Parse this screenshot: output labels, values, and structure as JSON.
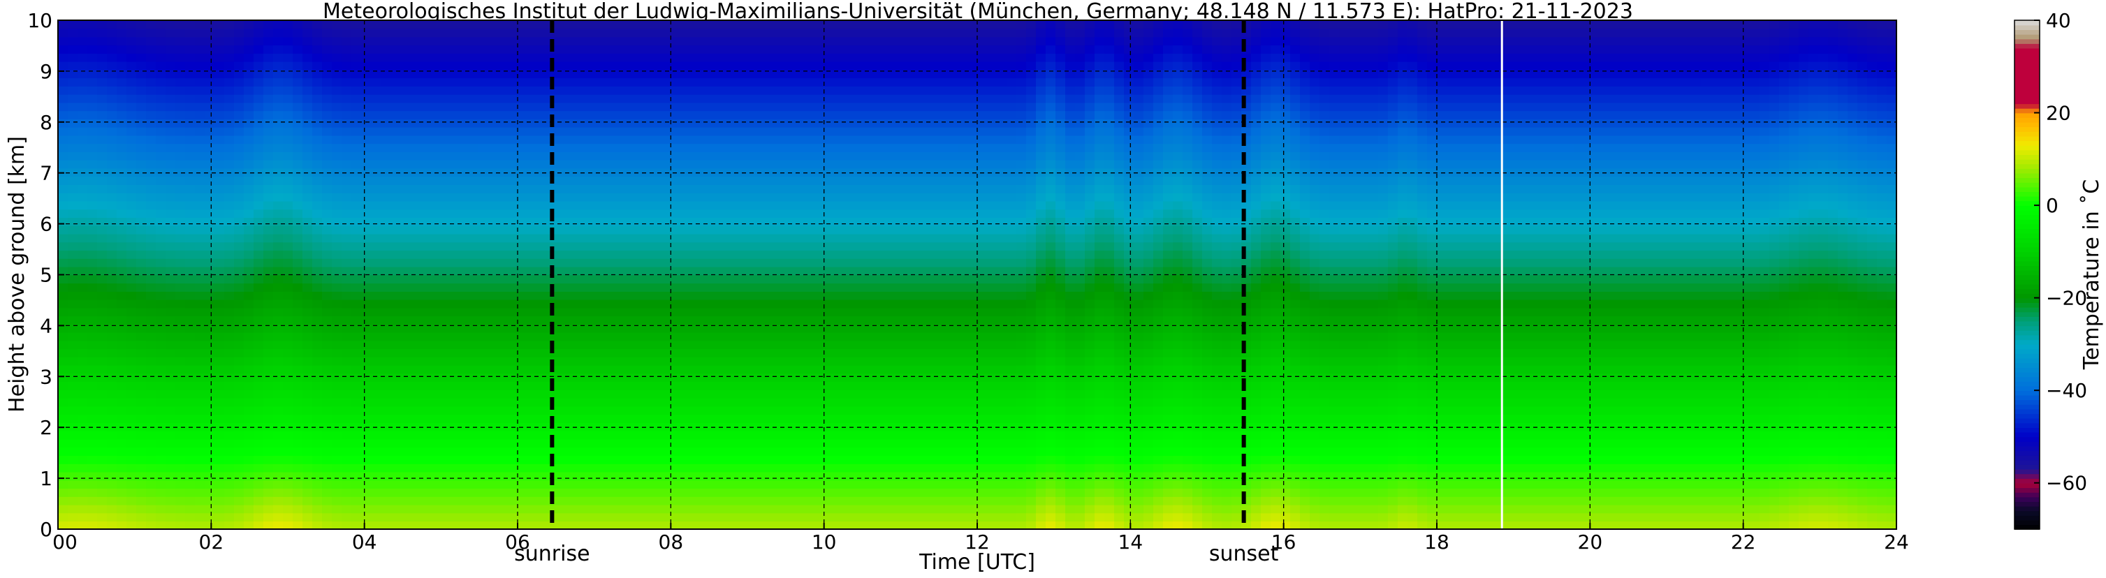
{
  "chart_data": {
    "type": "heatmap",
    "title": "Meteorologisches Institut der Ludwig-Maximilians-Universität (München, Germany; 48.148 N / 11.573 E):    HatPro: 21-11-2023",
    "xlabel": "Time [UTC]",
    "ylabel": "Height above ground [km]",
    "xlim": [
      0,
      24
    ],
    "ylim": [
      0,
      10
    ],
    "x_ticks": [
      "00",
      "02",
      "04",
      "06",
      "08",
      "10",
      "12",
      "14",
      "16",
      "18",
      "20",
      "22",
      "24"
    ],
    "x_tick_values": [
      0,
      2,
      4,
      6,
      8,
      10,
      12,
      14,
      16,
      18,
      20,
      22,
      24
    ],
    "y_ticks": [
      "0",
      "1",
      "2",
      "3",
      "4",
      "5",
      "6",
      "7",
      "8",
      "9",
      "10"
    ],
    "y_tick_values": [
      0,
      1,
      2,
      3,
      4,
      5,
      6,
      7,
      8,
      9,
      10
    ],
    "grid": true,
    "colorbar": {
      "label": "Temperature in ˚C",
      "range": [
        -70,
        40
      ],
      "ticks": [
        "40",
        "20",
        "0",
        "−20",
        "−40",
        "−60"
      ],
      "tick_values": [
        40,
        20,
        0,
        -20,
        -40,
        -60
      ]
    },
    "annotations": [
      {
        "label": "sunrise",
        "time": 6.45
      },
      {
        "label": "sunset",
        "time": 15.48
      }
    ],
    "data_gap_line": {
      "time": 18.85,
      "color": "#ffffff"
    },
    "surface_temperature_c": 9,
    "lapse_rate_c_per_km": -6.5,
    "warm_bursts": [
      {
        "time": 0.3,
        "width_h": 0.8,
        "strength": 0.7
      },
      {
        "time": 2.9,
        "width_h": 0.45,
        "strength": 1.0
      },
      {
        "time": 12.95,
        "width_h": 0.2,
        "strength": 0.95
      },
      {
        "time": 13.65,
        "width_h": 0.25,
        "strength": 0.95
      },
      {
        "time": 14.6,
        "width_h": 0.35,
        "strength": 1.0
      },
      {
        "time": 15.9,
        "width_h": 0.35,
        "strength": 1.0
      },
      {
        "time": 17.6,
        "width_h": 0.2,
        "strength": 0.45
      },
      {
        "time": 23.0,
        "width_h": 0.55,
        "strength": 0.6
      }
    ]
  }
}
